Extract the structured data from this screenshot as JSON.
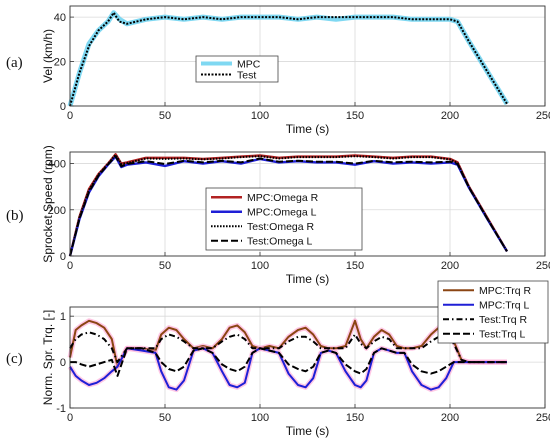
{
  "chart_data": [
    {
      "type": "line",
      "panel_label": "(a)",
      "xlabel": "Time (s)",
      "ylabel": "Vel (km/h)",
      "xlim": [
        0,
        250
      ],
      "ylim": [
        0,
        45
      ],
      "xticks": [
        "0",
        "50",
        "100",
        "150",
        "200",
        "250"
      ],
      "yticks": [
        "0",
        "20",
        "40"
      ],
      "grid": true,
      "legend": "center",
      "x": [
        0,
        5,
        10,
        15,
        20,
        23,
        26,
        30,
        40,
        50,
        60,
        70,
        80,
        90,
        100,
        110,
        120,
        130,
        140,
        150,
        160,
        170,
        180,
        190,
        200,
        204,
        210,
        220,
        230
      ],
      "series": [
        {
          "name": "MPC",
          "color": "#7fd8f2",
          "values": [
            0,
            15,
            28,
            34,
            38,
            42,
            39,
            37,
            39,
            40,
            39,
            40,
            39,
            40,
            40,
            40,
            39,
            40,
            39,
            40,
            40,
            40,
            39,
            39,
            39,
            38,
            29,
            15,
            1
          ]
        },
        {
          "name": "Test",
          "color": "#000000",
          "values": [
            0,
            15,
            27,
            34,
            38,
            42,
            38,
            37,
            39,
            40,
            39,
            40,
            39,
            40,
            40,
            40,
            39,
            40,
            40,
            40,
            40,
            40,
            39,
            39,
            39,
            38,
            29,
            15,
            1
          ]
        }
      ]
    },
    {
      "type": "line",
      "panel_label": "(b)",
      "xlabel": "Time (s)",
      "ylabel": "Sprocket Speed (rpm)",
      "xlim": [
        0,
        250
      ],
      "ylim": [
        0,
        450
      ],
      "xticks": [
        "0",
        "50",
        "100",
        "150",
        "200",
        "250"
      ],
      "yticks": [
        "0",
        "200",
        "400"
      ],
      "grid": true,
      "legend": "center",
      "x": [
        0,
        5,
        10,
        15,
        20,
        24,
        27,
        30,
        40,
        50,
        60,
        70,
        80,
        90,
        100,
        110,
        120,
        130,
        140,
        150,
        160,
        170,
        180,
        190,
        200,
        204,
        210,
        220,
        230
      ],
      "series": [
        {
          "name": "MPC:Omega R",
          "color": "#b22222",
          "values": [
            0,
            170,
            290,
            355,
            400,
            440,
            400,
            405,
            425,
            425,
            425,
            420,
            425,
            430,
            435,
            425,
            430,
            430,
            430,
            435,
            430,
            425,
            430,
            430,
            420,
            405,
            300,
            160,
            20
          ]
        },
        {
          "name": "MPC:Omega L",
          "color": "#1f1fd6",
          "values": [
            0,
            160,
            275,
            345,
            395,
            430,
            385,
            395,
            405,
            390,
            410,
            400,
            410,
            400,
            420,
            405,
            410,
            405,
            405,
            395,
            410,
            400,
            405,
            400,
            405,
            395,
            295,
            155,
            20
          ]
        },
        {
          "name": "Test:Omega R",
          "color": "#000000",
          "values": [
            0,
            168,
            285,
            352,
            398,
            438,
            398,
            402,
            422,
            420,
            422,
            418,
            422,
            428,
            432,
            422,
            428,
            428,
            428,
            432,
            428,
            422,
            428,
            428,
            418,
            402,
            298,
            158,
            20
          ]
        },
        {
          "name": "Test:Omega L",
          "color": "#000000",
          "values": [
            0,
            162,
            278,
            348,
            396,
            432,
            388,
            398,
            410,
            398,
            412,
            405,
            412,
            405,
            422,
            408,
            412,
            408,
            408,
            400,
            412,
            405,
            408,
            405,
            408,
            398,
            296,
            156,
            20
          ]
        }
      ]
    },
    {
      "type": "line",
      "panel_label": "(c)",
      "xlabel": "Time (s)",
      "ylabel": "Norm. Spr. Trq. [-]",
      "xlim": [
        0,
        250
      ],
      "ylim": [
        -1,
        1.2
      ],
      "xticks": [
        "0",
        "50",
        "100",
        "150",
        "200",
        "250"
      ],
      "yticks": [
        "-1",
        "0",
        "1"
      ],
      "grid": true,
      "legend": "top-right",
      "x": [
        0,
        3,
        6,
        10,
        14,
        18,
        22,
        25,
        30,
        38,
        45,
        48,
        52,
        56,
        60,
        65,
        70,
        75,
        80,
        84,
        88,
        92,
        96,
        100,
        105,
        110,
        115,
        120,
        124,
        128,
        132,
        136,
        140,
        145,
        150,
        153,
        156,
        160,
        164,
        168,
        172,
        176,
        180,
        185,
        190,
        194,
        198,
        202,
        206,
        210,
        220,
        230
      ],
      "series": [
        {
          "name": "MPC:Trq R",
          "color": "#8b4513",
          "values": [
            0.1,
            0.7,
            0.8,
            0.9,
            0.85,
            0.75,
            0.5,
            -0.1,
            0.3,
            0.3,
            0.25,
            0.6,
            0.75,
            0.7,
            0.5,
            0.3,
            0.35,
            0.3,
            0.5,
            0.75,
            0.8,
            0.65,
            0.35,
            0.3,
            0.35,
            0.3,
            0.55,
            0.7,
            0.75,
            0.6,
            0.35,
            0.3,
            0.3,
            0.35,
            0.9,
            0.5,
            0.3,
            0.55,
            0.7,
            0.6,
            0.35,
            0.3,
            0.3,
            0.35,
            0.6,
            0.75,
            0.7,
            0.45,
            0.05,
            0.0,
            0.0,
            0.0
          ]
        },
        {
          "name": "MPC:Trq L",
          "color": "#1f1fd6",
          "values": [
            -0.1,
            -0.3,
            -0.4,
            -0.5,
            -0.45,
            -0.35,
            -0.2,
            -0.1,
            0.3,
            0.25,
            0.2,
            -0.2,
            -0.55,
            -0.6,
            -0.4,
            0.25,
            0.3,
            0.2,
            -0.2,
            -0.5,
            -0.55,
            -0.45,
            0.2,
            0.3,
            0.25,
            0.2,
            -0.25,
            -0.5,
            -0.55,
            -0.35,
            0.2,
            0.25,
            0.2,
            -0.2,
            -0.5,
            -0.55,
            -0.4,
            0.2,
            0.3,
            0.25,
            0.2,
            0.2,
            -0.2,
            -0.5,
            -0.6,
            -0.55,
            -0.35,
            0.0,
            0.0,
            0.0,
            0.0,
            0.0
          ]
        },
        {
          "name": "Test:Trq R",
          "color": "#000000",
          "values": [
            0.3,
            0.5,
            0.6,
            0.65,
            0.6,
            0.5,
            0.3,
            0.0,
            0.3,
            0.3,
            0.3,
            0.5,
            0.6,
            0.55,
            0.45,
            0.3,
            0.3,
            0.3,
            0.45,
            0.55,
            0.6,
            0.5,
            0.3,
            0.3,
            0.3,
            0.3,
            0.45,
            0.55,
            0.55,
            0.45,
            0.3,
            0.3,
            0.3,
            0.3,
            0.6,
            0.4,
            0.3,
            0.45,
            0.55,
            0.5,
            0.3,
            0.3,
            0.3,
            0.3,
            0.45,
            0.55,
            0.55,
            0.4,
            0.05,
            0.0,
            0.0,
            0.0
          ]
        },
        {
          "name": "Test:Trq L",
          "color": "#000000",
          "values": [
            0.0,
            0.0,
            -0.05,
            -0.1,
            -0.05,
            0.0,
            0.05,
            -0.3,
            0.3,
            0.3,
            0.2,
            0.0,
            -0.15,
            -0.2,
            -0.1,
            0.25,
            0.3,
            0.2,
            -0.05,
            -0.15,
            -0.2,
            -0.1,
            0.2,
            0.3,
            0.25,
            0.2,
            -0.05,
            -0.15,
            -0.2,
            -0.1,
            0.2,
            0.25,
            0.2,
            -0.05,
            -0.2,
            -0.25,
            -0.15,
            0.2,
            0.3,
            0.25,
            0.2,
            0.2,
            -0.05,
            -0.2,
            -0.25,
            -0.2,
            -0.1,
            0.0,
            0.0,
            0.0,
            0.0,
            0.0
          ]
        }
      ]
    }
  ]
}
